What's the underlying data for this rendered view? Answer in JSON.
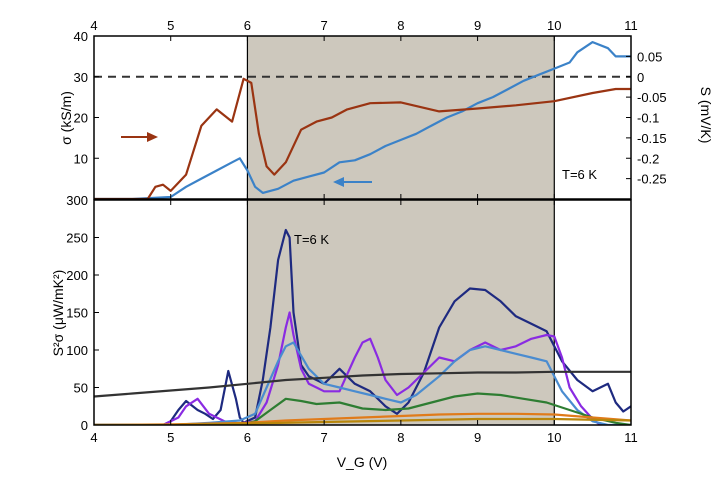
{
  "chart_data": [
    {
      "type": "line",
      "panel": "top",
      "title": "",
      "xlabel": "",
      "xlim": [
        4,
        11
      ],
      "x_ticks": [
        "4",
        "5",
        "6",
        "7",
        "8",
        "9",
        "10",
        "11"
      ],
      "ylabel": "σ (kS/m)",
      "ylim": [
        0,
        40
      ],
      "y_ticks": [
        "0",
        "10",
        "20",
        "30",
        "40"
      ],
      "y2label": "S (mV/K)",
      "y2lim": [
        -0.3,
        0.1
      ],
      "y2_ticks": [
        "0.05",
        "0",
        "-0.05",
        "-0.1",
        "-0.15",
        "-0.2",
        "-0.25"
      ],
      "shaded_region": [
        6,
        10
      ],
      "shade_color": "#cdc8bd",
      "dashed_line": {
        "axis": "S",
        "value": 0
      },
      "annotation": "T=6 K",
      "series": [
        {
          "axis": "sigma",
          "color": "#3b82c8",
          "x": [
            4.0,
            4.5,
            5.0,
            5.2,
            5.4,
            5.6,
            5.8,
            5.9,
            6.0,
            6.1,
            6.2,
            6.4,
            6.6,
            6.8,
            7.0,
            7.2,
            7.4,
            7.6,
            7.8,
            8.0,
            8.2,
            8.4,
            8.6,
            8.8,
            9.0,
            9.2,
            9.4,
            9.6,
            9.8,
            10.0,
            10.2,
            10.3,
            10.5,
            10.7,
            10.8,
            11.0
          ],
          "y": [
            0,
            0,
            0.5,
            3,
            5,
            7,
            9,
            10,
            7,
            3,
            1.5,
            2.5,
            4.5,
            5.5,
            6.5,
            9,
            9.5,
            11,
            13,
            14.5,
            16,
            18,
            20,
            21.5,
            23.5,
            25,
            27,
            29,
            30.5,
            32,
            33.5,
            36,
            38.5,
            37,
            35,
            35
          ]
        },
        {
          "axis": "S",
          "color": "#9a3412",
          "x": [
            4.0,
            4.7,
            4.8,
            4.9,
            5.0,
            5.2,
            5.4,
            5.6,
            5.8,
            5.95,
            6.05,
            6.15,
            6.25,
            6.35,
            6.5,
            6.7,
            6.9,
            7.1,
            7.3,
            7.6,
            8.0,
            8.5,
            9.0,
            9.5,
            10.0,
            10.5,
            10.8,
            11.0
          ],
          "y": [
            -0.3,
            -0.3,
            -0.27,
            -0.265,
            -0.28,
            -0.24,
            -0.12,
            -0.08,
            -0.11,
            -0.005,
            -0.015,
            -0.14,
            -0.22,
            -0.24,
            -0.21,
            -0.13,
            -0.11,
            -0.1,
            -0.08,
            -0.065,
            -0.063,
            -0.085,
            -0.078,
            -0.07,
            -0.06,
            -0.04,
            -0.03,
            -0.03
          ]
        }
      ]
    },
    {
      "type": "line",
      "panel": "bottom",
      "title": "",
      "xlabel": "V_G (V)",
      "xlim": [
        4,
        11
      ],
      "x_ticks": [
        "4",
        "5",
        "6",
        "7",
        "8",
        "9",
        "10",
        "11"
      ],
      "ylabel": "S²σ (μW/mK²)",
      "ylim": [
        0,
        300
      ],
      "y_ticks": [
        "0",
        "50",
        "100",
        "150",
        "200",
        "250",
        "300"
      ],
      "shaded_region": [
        6,
        10
      ],
      "annotation": "T=6 K",
      "series": [
        {
          "color": "#1e2a80",
          "x": [
            4.0,
            4.9,
            5.0,
            5.1,
            5.2,
            5.35,
            5.45,
            5.55,
            5.65,
            5.75,
            5.85,
            5.9,
            5.95,
            6.1,
            6.2,
            6.3,
            6.4,
            6.5,
            6.55,
            6.6,
            6.7,
            6.8,
            6.9,
            7.0,
            7.2,
            7.4,
            7.6,
            7.8,
            7.95,
            8.1,
            8.3,
            8.5,
            8.7,
            8.9,
            9.1,
            9.3,
            9.5,
            9.7,
            9.9,
            10.1,
            10.3,
            10.5,
            10.7,
            10.8,
            10.9,
            11.0
          ],
          "y": [
            0,
            0,
            5,
            20,
            32,
            20,
            15,
            8,
            20,
            72,
            35,
            10,
            3,
            10,
            60,
            130,
            220,
            260,
            250,
            150,
            80,
            65,
            60,
            55,
            75,
            55,
            45,
            25,
            15,
            30,
            70,
            130,
            165,
            182,
            180,
            165,
            145,
            135,
            125,
            85,
            60,
            45,
            55,
            30,
            18,
            25
          ]
        },
        {
          "color": "#8a2be2",
          "x": [
            4.0,
            4.9,
            5.1,
            5.2,
            5.35,
            5.5,
            5.7,
            5.9,
            6.1,
            6.25,
            6.4,
            6.5,
            6.55,
            6.6,
            6.7,
            6.8,
            6.9,
            7.0,
            7.2,
            7.4,
            7.5,
            7.6,
            7.7,
            7.8,
            7.95,
            8.1,
            8.3,
            8.5,
            8.7,
            8.9,
            9.1,
            9.3,
            9.5,
            9.7,
            9.9,
            10.0,
            10.1,
            10.2,
            10.35,
            10.5,
            10.6
          ],
          "y": [
            0,
            0,
            10,
            25,
            35,
            15,
            5,
            2,
            5,
            30,
            80,
            130,
            150,
            120,
            75,
            55,
            50,
            45,
            45,
            90,
            110,
            115,
            90,
            60,
            40,
            50,
            70,
            90,
            85,
            100,
            110,
            100,
            105,
            115,
            120,
            118,
            90,
            50,
            25,
            8,
            0
          ]
        },
        {
          "color": "#4a8cd0",
          "x": [
            4.0,
            5.0,
            5.5,
            5.9,
            6.1,
            6.25,
            6.4,
            6.5,
            6.6,
            6.8,
            7.0,
            7.2,
            7.4,
            7.6,
            7.8,
            8.0,
            8.2,
            8.5,
            8.7,
            8.9,
            9.1,
            9.3,
            9.5,
            9.7,
            9.9,
            10.1,
            10.3,
            10.5,
            10.7,
            11.0
          ],
          "y": [
            0,
            0,
            3,
            6,
            15,
            50,
            85,
            105,
            110,
            75,
            55,
            50,
            45,
            40,
            35,
            30,
            40,
            65,
            85,
            100,
            105,
            100,
            95,
            90,
            85,
            45,
            20,
            5,
            0,
            0
          ]
        },
        {
          "color": "#2e7d32",
          "x": [
            4.0,
            5.0,
            5.9,
            6.1,
            6.3,
            6.5,
            6.7,
            6.9,
            7.2,
            7.5,
            7.8,
            8.1,
            8.4,
            8.7,
            9.0,
            9.3,
            9.6,
            9.9,
            10.2,
            10.5,
            10.8,
            11.0
          ],
          "y": [
            0,
            0,
            0,
            5,
            20,
            35,
            32,
            28,
            30,
            22,
            20,
            22,
            30,
            38,
            42,
            40,
            35,
            30,
            20,
            10,
            3,
            0
          ]
        },
        {
          "color": "#333333",
          "x": [
            4.0,
            4.5,
            5.0,
            5.5,
            6.0,
            6.5,
            7.0,
            7.5,
            8.0,
            8.5,
            9.0,
            9.5,
            10.0,
            10.5,
            11.0
          ],
          "y": [
            38,
            42,
            46,
            50,
            55,
            60,
            63,
            66,
            68,
            69,
            70,
            70,
            71,
            71,
            71
          ]
        },
        {
          "color": "#e07b1a",
          "x": [
            4.0,
            5.0,
            6.0,
            6.5,
            7.0,
            7.5,
            8.0,
            8.5,
            9.0,
            9.5,
            10.0,
            10.5,
            11.0
          ],
          "y": [
            0,
            1,
            3,
            6,
            8,
            10,
            12,
            14,
            15,
            15,
            14,
            10,
            6
          ]
        },
        {
          "color": "#b8860b",
          "x": [
            4.0,
            5.0,
            6.0,
            7.0,
            8.0,
            9.0,
            10.0,
            11.0
          ],
          "y": [
            0,
            0,
            2,
            4,
            6,
            8,
            8,
            6
          ]
        }
      ]
    }
  ]
}
